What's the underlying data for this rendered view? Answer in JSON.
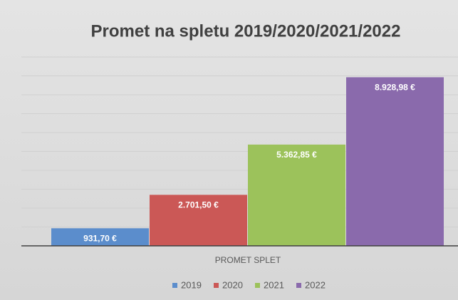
{
  "chart_data": {
    "type": "bar",
    "title": "Promet na spletu 2019/2020/2021/2022",
    "categories": [
      "PROMET SPLET"
    ],
    "series": [
      {
        "name": "2019",
        "color": "#5b8dcc",
        "values": [
          931.7
        ],
        "value_labels": [
          "931,70 €"
        ]
      },
      {
        "name": "2020",
        "color": "#cb5856",
        "values": [
          2701.5
        ],
        "value_labels": [
          "2.701,50 €"
        ]
      },
      {
        "name": "2021",
        "color": "#9cc25b",
        "values": [
          5362.85
        ],
        "value_labels": [
          "5.362,85 €"
        ]
      },
      {
        "name": "2022",
        "color": "#8a6aac",
        "values": [
          8928.98
        ],
        "value_labels": [
          "8.928,98 €"
        ]
      }
    ],
    "ylim": [
      0,
      10000
    ],
    "yticks": [
      0,
      1000,
      2000,
      3000,
      4000,
      5000,
      6000,
      7000,
      8000,
      9000,
      10000
    ],
    "grid": true,
    "legend": "bottom"
  }
}
